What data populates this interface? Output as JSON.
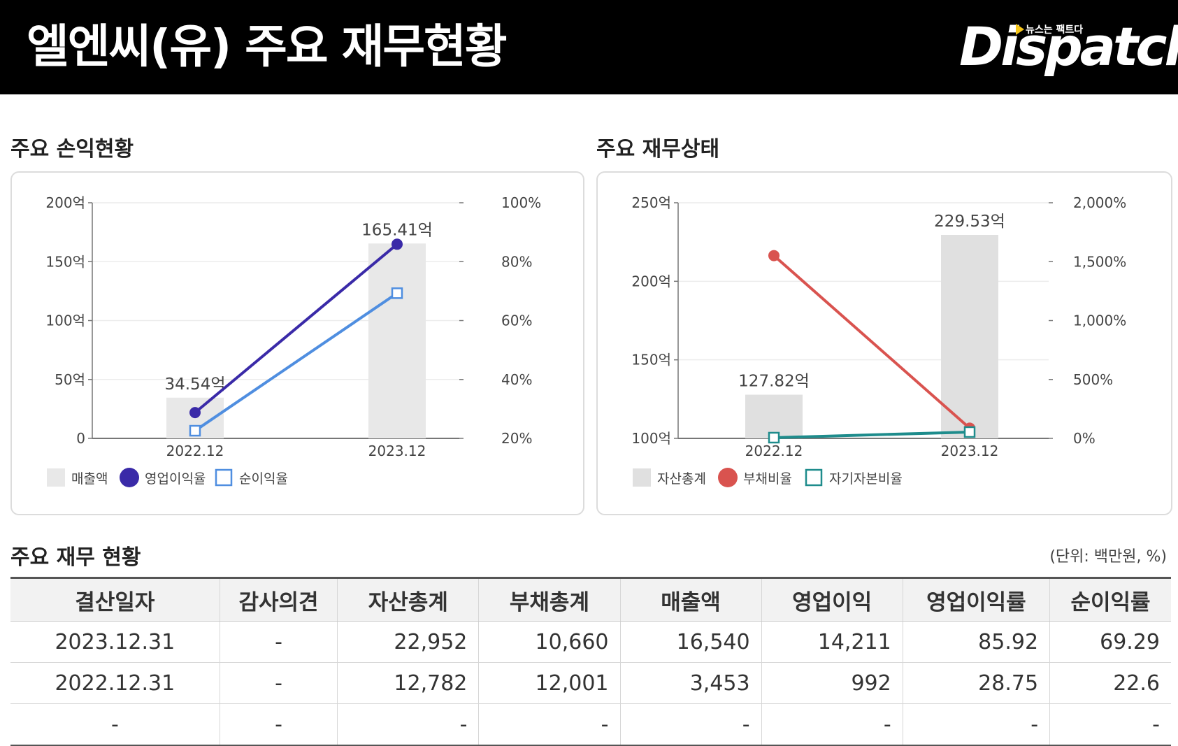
{
  "header": {
    "title": "엘엔씨(유) 주요 재무현황",
    "logo_text": "Dispatch",
    "logo_tagline": "뉴스는 팩트다"
  },
  "sections": {
    "income_title": "주요 손익현황",
    "balance_title": "주요 재무상태",
    "table_title": "주요 재무 현황",
    "unit_note": "(단위: 백만원, %)"
  },
  "chart_data": [
    {
      "type": "bar",
      "title": "주요 손익현황",
      "categories": [
        "2022.12",
        "2023.12"
      ],
      "left_axis": {
        "ticks": [
          "0",
          "50억",
          "100억",
          "150억",
          "200억"
        ],
        "range": [
          0,
          200
        ]
      },
      "right_axis": {
        "ticks": [
          "20%",
          "40%",
          "60%",
          "80%",
          "100%"
        ],
        "range": [
          20,
          100
        ]
      },
      "series": [
        {
          "name": "매출액",
          "kind": "bar",
          "axis": "left",
          "values": [
            34.54,
            165.41
          ],
          "labels": [
            "34.54억",
            "165.41억"
          ],
          "color": "#e8e8e8"
        },
        {
          "name": "영업이익율",
          "kind": "line",
          "axis": "right",
          "marker": "circle",
          "values": [
            28.75,
            85.92
          ],
          "color": "#3a2aa8"
        },
        {
          "name": "순이익율",
          "kind": "line",
          "axis": "right",
          "marker": "square",
          "values": [
            22.6,
            69.29
          ],
          "color": "#4f8ee0"
        }
      ],
      "grid": true,
      "legend": "bottom-left"
    },
    {
      "type": "bar",
      "title": "주요 재무상태",
      "categories": [
        "2022.12",
        "2023.12"
      ],
      "left_axis": {
        "ticks": [
          "100억",
          "150억",
          "200억",
          "250억"
        ],
        "range": [
          100,
          250
        ]
      },
      "right_axis": {
        "ticks": [
          "0%",
          "500%",
          "1,000%",
          "1,500%",
          "2,000%"
        ],
        "range": [
          0,
          2000
        ]
      },
      "series": [
        {
          "name": "자산총계",
          "kind": "bar",
          "axis": "left",
          "values": [
            127.82,
            229.53
          ],
          "labels": [
            "127.82억",
            "229.53억"
          ],
          "color": "#e0e0e0"
        },
        {
          "name": "부채비율",
          "kind": "line",
          "axis": "right",
          "marker": "circle",
          "values": [
            1551.4,
            87.0
          ],
          "color": "#d9534f"
        },
        {
          "name": "자기자본비율",
          "kind": "line",
          "axis": "right",
          "marker": "square",
          "values": [
            6.1,
            53.6
          ],
          "color": "#1e8c8c"
        }
      ],
      "grid": true,
      "legend": "bottom-left"
    }
  ],
  "table": {
    "headers": [
      "결산일자",
      "감사의견",
      "자산총계",
      "부채총계",
      "매출액",
      "영업이익",
      "영업이익률",
      "순이익률"
    ],
    "rows": [
      [
        "2023.12.31",
        "-",
        "22,952",
        "10,660",
        "16,540",
        "14,211",
        "85.92",
        "69.29"
      ],
      [
        "2022.12.31",
        "-",
        "12,782",
        "12,001",
        "3,453",
        "992",
        "28.75",
        "22.6"
      ],
      [
        "-",
        "-",
        "-",
        "-",
        "-",
        "-",
        "-",
        "-"
      ]
    ]
  }
}
